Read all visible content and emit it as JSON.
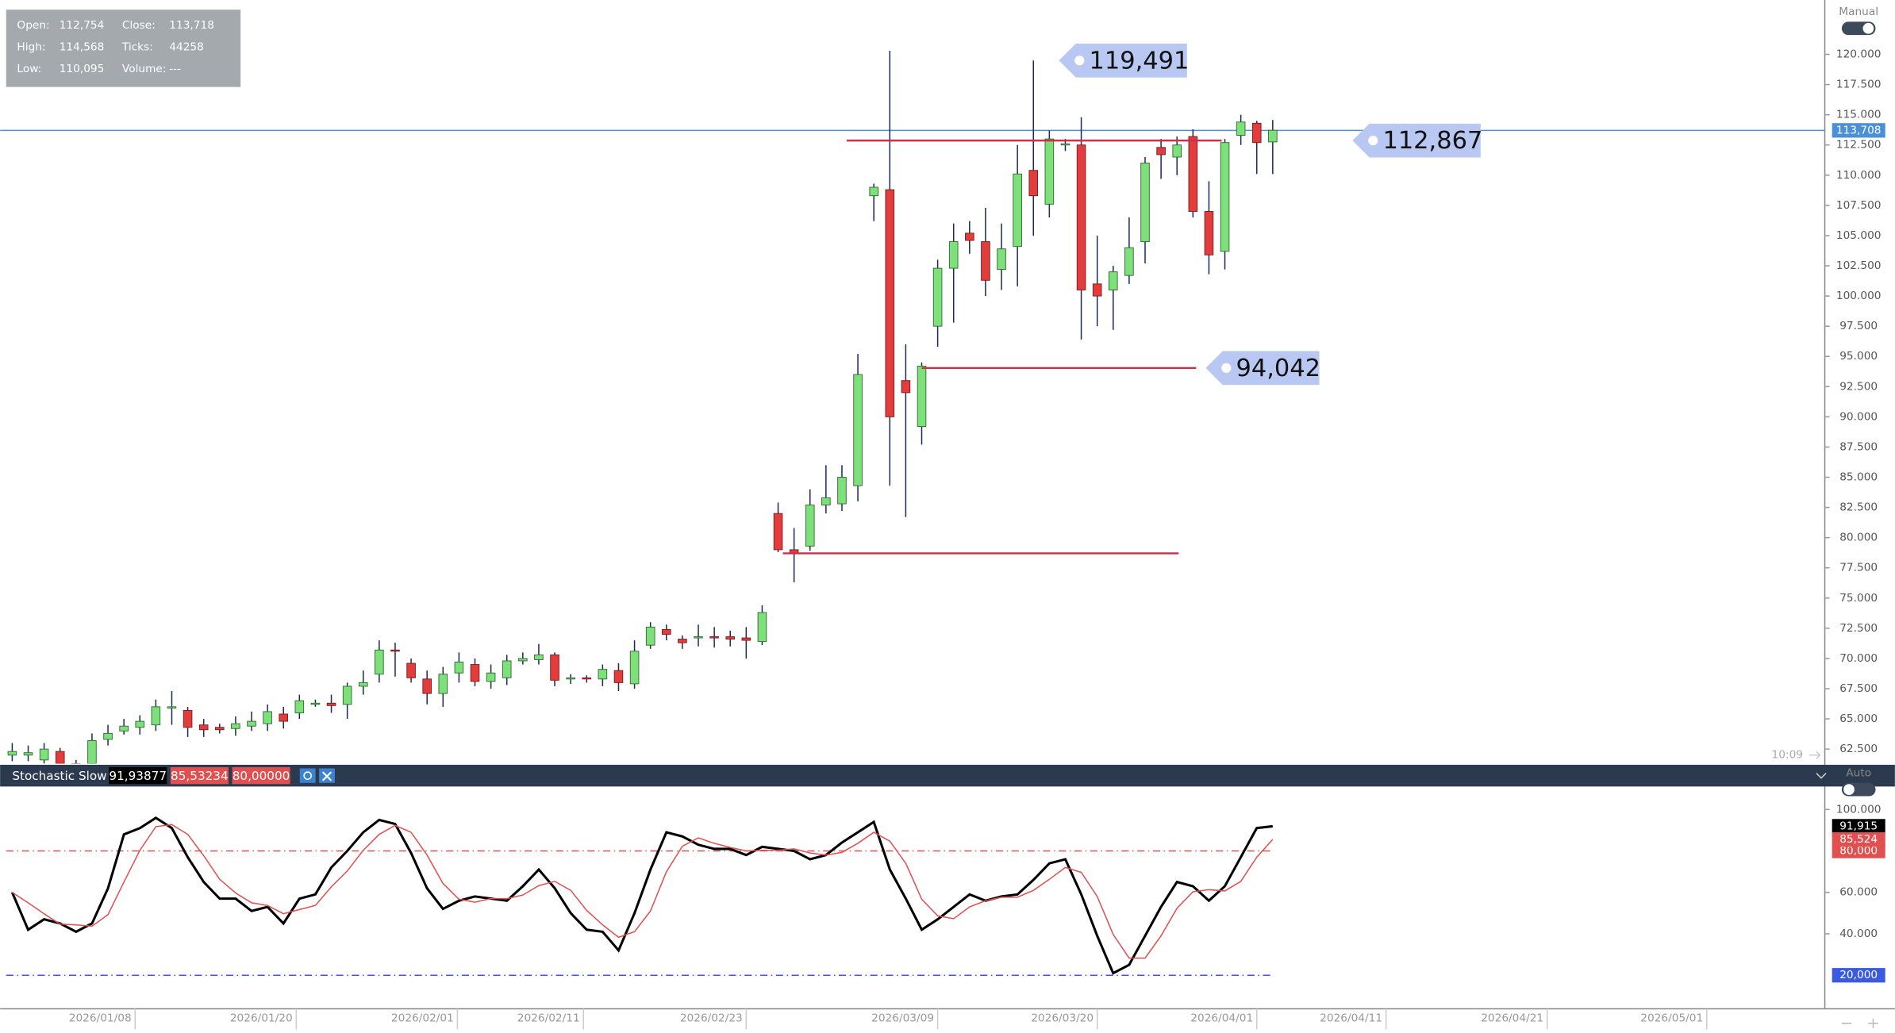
{
  "info": {
    "rows": [
      [
        {
          "label": "Open:",
          "value": "112,754"
        },
        {
          "label": "Close:",
          "value": "113,718"
        }
      ],
      [
        {
          "label": "High:",
          "value": "114,568"
        },
        {
          "label": "Ticks:",
          "value": "44258"
        }
      ],
      [
        {
          "label": "Low:",
          "value": "110,095"
        },
        {
          "label": "Volume:",
          "value": "---"
        }
      ]
    ]
  },
  "ui": {
    "price_mode": "Manual",
    "indicator_mode": "Auto",
    "time": "10:09"
  },
  "chart_data": [
    {
      "type": "candlestick",
      "up_color": "#7de07a",
      "down_color": "#e23c3c",
      "open": [
        62,
        62,
        61.6,
        62.3,
        61.3,
        61.3,
        63.3,
        64,
        64.3,
        64.5,
        66,
        65.7,
        64.5,
        64.3,
        64.2,
        64.4,
        64.6,
        65.4,
        65.5,
        66.2,
        66.3,
        66.2,
        67.7,
        68.7,
        70.7,
        69.6,
        68.3,
        67.1,
        68.8,
        69.5,
        68.1,
        68.4,
        69.8,
        69.9,
        70.3,
        68.3,
        68.4,
        68.3,
        69,
        67.9,
        71.1,
        72.4,
        71.6,
        71.8,
        71.8,
        71.8,
        71.7,
        71.4,
        82,
        79,
        79.3,
        82.7,
        82.8,
        84.3,
        108.3,
        108.8,
        93,
        89.2,
        97.5,
        102.3,
        105.2,
        104.5,
        102.2,
        104.1,
        110.4,
        107.6,
        112.5,
        112.5,
        101,
        100.5,
        101.7,
        104.5,
        112.3,
        111.5,
        113.2,
        107,
        103.7,
        113.3,
        114.3,
        112.754
      ],
      "high": [
        63,
        62.8,
        63,
        62.6,
        61.6,
        63.8,
        64.5,
        65,
        65.3,
        66.6,
        67.3,
        66,
        65,
        64.6,
        65.2,
        65.6,
        66.2,
        66,
        67,
        66.6,
        67,
        68,
        69,
        71.5,
        71.3,
        70,
        69,
        69.3,
        70.5,
        70,
        69.5,
        70.3,
        70.5,
        71.2,
        70.5,
        68.7,
        68.6,
        69.5,
        69.6,
        71.5,
        73,
        72.8,
        71.9,
        72.8,
        72.6,
        72.3,
        72.6,
        74.4,
        82.9,
        80.8,
        84,
        86,
        86,
        95.2,
        109.3,
        120.3,
        96,
        94.5,
        103,
        106,
        106.2,
        107.3,
        106,
        112.5,
        119.491,
        113.7,
        113,
        114.8,
        105,
        102.5,
        106.5,
        111.5,
        113,
        113.2,
        113.8,
        109.5,
        113,
        115,
        114.5,
        114.568
      ],
      "low": [
        61.5,
        61.5,
        61,
        61,
        60.8,
        61,
        62.8,
        63.7,
        63.7,
        64,
        64.5,
        63.5,
        63.5,
        63.8,
        63.6,
        64,
        64,
        64.2,
        65,
        66,
        65.5,
        65,
        67,
        68,
        68.5,
        68,
        66.2,
        66,
        68,
        67.7,
        67.5,
        67.8,
        69.5,
        69.5,
        67.7,
        67.9,
        68,
        67.7,
        67.3,
        67.5,
        70.8,
        71.5,
        70.8,
        71,
        70.9,
        71,
        70,
        71.1,
        78.8,
        76.3,
        78.9,
        82,
        82.2,
        83,
        106.2,
        84.3,
        81.7,
        87.7,
        95.8,
        97.8,
        103.5,
        100,
        100.5,
        100.8,
        105,
        106.5,
        112,
        96.4,
        97.5,
        97.2,
        101,
        102.7,
        109.7,
        110,
        106.5,
        101.8,
        102.2,
        112.5,
        110.1,
        110.095
      ],
      "close": [
        62.3,
        62.2,
        62.5,
        61.3,
        61.1,
        63.2,
        63.8,
        64.4,
        64.8,
        66,
        66,
        64.3,
        64.1,
        64.1,
        64.6,
        64.8,
        65.6,
        64.8,
        66.5,
        66.3,
        66.1,
        67.7,
        68,
        70.7,
        70.6,
        68.4,
        67.1,
        68.7,
        69.7,
        68.1,
        68.8,
        69.8,
        70,
        70.3,
        68.2,
        68.4,
        68.3,
        69.1,
        68,
        70.6,
        72.6,
        72,
        71.3,
        71.8,
        71.7,
        71.6,
        71.5,
        73.8,
        79,
        78.7,
        82.7,
        83.3,
        85,
        93.5,
        109,
        90,
        92,
        94.2,
        102.3,
        104.5,
        104.6,
        101.3,
        103.9,
        110.1,
        108.3,
        113,
        112.6,
        100.5,
        100,
        102,
        104,
        111,
        111.7,
        112.5,
        107,
        103.4,
        112.7,
        114.4,
        112.7,
        113.718
      ],
      "xlim": [
        -0.76,
        113.6
      ],
      "ylim": [
        61.3,
        124.5
      ],
      "yticks": [
        {
          "value": 62.5,
          "label": "62.500"
        },
        {
          "value": 65,
          "label": "65.000"
        },
        {
          "value": 67.5,
          "label": "67.500"
        },
        {
          "value": 70,
          "label": "70.000"
        },
        {
          "value": 72.5,
          "label": "72.500"
        },
        {
          "value": 75,
          "label": "75.000"
        },
        {
          "value": 77.5,
          "label": "77.500"
        },
        {
          "value": 80,
          "label": "80.000"
        },
        {
          "value": 82.5,
          "label": "82.500"
        },
        {
          "value": 85,
          "label": "85.000"
        },
        {
          "value": 87.5,
          "label": "87.500"
        },
        {
          "value": 90,
          "label": "90.000"
        },
        {
          "value": 92.5,
          "label": "92.500"
        },
        {
          "value": 95,
          "label": "95.000"
        },
        {
          "value": 97.5,
          "label": "97.500"
        },
        {
          "value": 100,
          "label": "100.000"
        },
        {
          "value": 102.5,
          "label": "102.500"
        },
        {
          "value": 105,
          "label": "105.000"
        },
        {
          "value": 107.5,
          "label": "107.500"
        },
        {
          "value": 110,
          "label": "110.000"
        },
        {
          "value": 112.5,
          "label": "112.500"
        },
        {
          "value": 115,
          "label": "115.000"
        },
        {
          "value": 117.5,
          "label": "117.500"
        },
        {
          "value": 120,
          "label": "120.000"
        }
      ],
      "last_price": {
        "value": 113.708,
        "label": "113,708",
        "color": "#4a90d9"
      },
      "levels": [
        {
          "value": 112.867,
          "start": 52.3,
          "end": 75.8,
          "color": "#c8324a"
        },
        {
          "value": 94.042,
          "start": 57,
          "end": 74.2,
          "color": "#c8324a"
        },
        {
          "value": 78.7,
          "start": 48.3,
          "end": 73.1,
          "color": "#c8324a"
        }
      ],
      "callouts": [
        {
          "value": 119.491,
          "label": "119,491",
          "at": 65.6
        },
        {
          "value": 112.867,
          "label": "112,867",
          "at": 84
        },
        {
          "value": 94.042,
          "label": "94,042",
          "at": 74.8
        }
      ]
    },
    {
      "type": "line",
      "title": "Stochastic Slow",
      "series": [
        {
          "name": "91,93877",
          "color": "#000000",
          "last_label": "91,915",
          "values": [
            60,
            42,
            47,
            45,
            41,
            45,
            62,
            88,
            91,
            96,
            91,
            77,
            65,
            57,
            57,
            51,
            53,
            45,
            57,
            59,
            72,
            80,
            89,
            95,
            93,
            79,
            62,
            52,
            56,
            58,
            57,
            56,
            63,
            71,
            62,
            50,
            42,
            41,
            32,
            50,
            71,
            89,
            87,
            83,
            81,
            81,
            78,
            82,
            81,
            80,
            76,
            78,
            84,
            89,
            94,
            71,
            57,
            42,
            47,
            53,
            59,
            56,
            58,
            59,
            66,
            74,
            76,
            59,
            39,
            21,
            25,
            39,
            53,
            65,
            63,
            56,
            63,
            77,
            91,
            91.915
          ]
        },
        {
          "name": "85,53234",
          "color": "#e05050",
          "last_label": "85,524",
          "values": [
            60,
            55,
            49.7,
            44.7,
            44.3,
            43.7,
            49.3,
            65,
            80.3,
            91.7,
            92.7,
            88,
            77.7,
            66.3,
            59.7,
            55,
            53.7,
            49.7,
            51.7,
            53.7,
            62.7,
            70.3,
            80.3,
            88,
            92.3,
            89,
            78,
            64.3,
            56.7,
            55.3,
            57,
            57,
            58.7,
            63.3,
            65.3,
            61,
            51.3,
            44.3,
            38.3,
            41,
            51,
            70,
            82.3,
            86.3,
            83.7,
            81.7,
            80,
            80.3,
            80.3,
            81,
            79,
            78,
            79.3,
            83.7,
            89,
            84.7,
            74,
            56.7,
            48.7,
            47.3,
            53,
            56,
            57.7,
            57.7,
            61,
            66.3,
            72,
            69.7,
            58,
            39.7,
            28.3,
            28.3,
            39,
            52.3,
            60.3,
            61.3,
            60.7,
            65.3,
            77,
            85.524
          ]
        }
      ],
      "levels": [
        {
          "value": 80,
          "label": "80,000",
          "name": "80,00000",
          "color": "#e05050"
        },
        {
          "value": 20,
          "label": "20,000",
          "color": "#3a5ae0"
        }
      ],
      "xlim": [
        -0.76,
        113.6
      ],
      "ylim": [
        3.8,
        110.5
      ],
      "yticks": [
        {
          "value": 100,
          "label": "100.000"
        },
        {
          "value": 60,
          "label": "60.000"
        },
        {
          "value": 40,
          "label": "40.000"
        }
      ],
      "xticks": [
        {
          "value": 7.7,
          "label": "2026/01/08"
        },
        {
          "value": 17.8,
          "label": "2026/01/20"
        },
        {
          "value": 27.9,
          "label": "2026/02/01"
        },
        {
          "value": 35.8,
          "label": "2026/02/11"
        },
        {
          "value": 46,
          "label": "2026/02/23"
        },
        {
          "value": 58,
          "label": "2026/03/09"
        },
        {
          "value": 68,
          "label": "2026/03/20"
        },
        {
          "value": 78,
          "label": "2026/04/01"
        },
        {
          "value": 86.1,
          "label": "2026/04/11"
        },
        {
          "value": 96.2,
          "label": "2026/04/21"
        },
        {
          "value": 106.2,
          "label": "2026/05/01"
        }
      ]
    }
  ]
}
